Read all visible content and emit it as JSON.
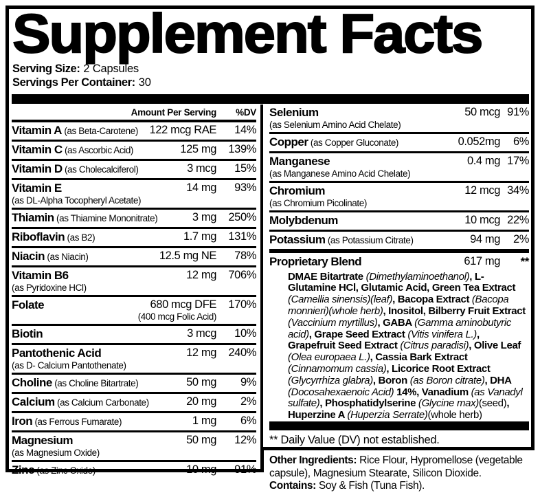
{
  "title": "Supplement Facts",
  "serving": {
    "size_label": "Serving Size:",
    "size_value": "2 Capsules",
    "container_label": "Servings Per Container:",
    "container_value": "30"
  },
  "table_header": {
    "amount": "Amount Per Serving",
    "dv": "%DV"
  },
  "left_rows": [
    {
      "name": "Vitamin A",
      "qualifier": "(as Beta-Carotene)",
      "qualifier_block": false,
      "amount": "122 mcg RAE",
      "amount_note": "",
      "dv": "14%"
    },
    {
      "name": "Vitamin C",
      "qualifier": "(as Ascorbic Acid)",
      "qualifier_block": false,
      "amount": "125 mg",
      "amount_note": "",
      "dv": "139%"
    },
    {
      "name": "Vitamin D",
      "qualifier": "(as Cholecalciferol)",
      "qualifier_block": false,
      "amount": "3 mcg",
      "amount_note": "",
      "dv": "15%"
    },
    {
      "name": "Vitamin E",
      "qualifier": "(as DL-Alpha Tocopheryl Acetate)",
      "qualifier_block": true,
      "amount": "14 mg",
      "amount_note": "",
      "dv": "93%"
    },
    {
      "name": "Thiamin",
      "qualifier": "(as Thiamine Mononitrate)",
      "qualifier_block": false,
      "amount": "3 mg",
      "amount_note": "",
      "dv": "250%"
    },
    {
      "name": "Riboflavin",
      "qualifier": "(as B2)",
      "qualifier_block": false,
      "amount": "1.7 mg",
      "amount_note": "",
      "dv": "131%"
    },
    {
      "name": "Niacin",
      "qualifier": "(as Niacin)",
      "qualifier_block": false,
      "amount": "12.5 mg NE",
      "amount_note": "",
      "dv": "78%"
    },
    {
      "name": "Vitamin B6",
      "qualifier": "(as Pyridoxine HCl)",
      "qualifier_block": true,
      "amount": "12 mg",
      "amount_note": "",
      "dv": "706%"
    },
    {
      "name": "Folate",
      "qualifier": "",
      "qualifier_block": false,
      "amount": "680 mcg DFE",
      "amount_note": "(400 mcg Folic Acid)",
      "dv": "170%"
    },
    {
      "name": "Biotin",
      "qualifier": "",
      "qualifier_block": false,
      "amount": "3 mcg",
      "amount_note": "",
      "dv": "10%"
    },
    {
      "name": "Pantothenic Acid",
      "qualifier": "(as D- Calcium Pantothenate)",
      "qualifier_block": true,
      "amount": "12 mg",
      "amount_note": "",
      "dv": "240%"
    },
    {
      "name": "Choline",
      "qualifier": "(as Choline Bitartrate)",
      "qualifier_block": false,
      "amount": "50 mg",
      "amount_note": "",
      "dv": "9%"
    },
    {
      "name": "Calcium",
      "qualifier": "(as Calcium Carbonate)",
      "qualifier_block": false,
      "amount": "20 mg",
      "amount_note": "",
      "dv": "2%"
    },
    {
      "name": "Iron",
      "qualifier": "(as Ferrous Fumarate)",
      "qualifier_block": false,
      "amount": "1 mg",
      "amount_note": "",
      "dv": "6%"
    },
    {
      "name": "Magnesium",
      "qualifier": "(as Magnesium Oxide)",
      "qualifier_block": true,
      "amount": "50 mg",
      "amount_note": "",
      "dv": "12%"
    },
    {
      "name": "Zinc",
      "qualifier": "(as Zinc Oxide)",
      "qualifier_block": false,
      "amount": "10 mg",
      "amount_note": "",
      "dv": "91%"
    }
  ],
  "right_rows": [
    {
      "name": "Selenium",
      "qualifier": "(as Selenium Amino Acid Chelate)",
      "qualifier_block": true,
      "amount": "50 mcg",
      "amount_note": "",
      "dv": "91%"
    },
    {
      "name": "Copper",
      "qualifier": "(as Copper Gluconate)",
      "qualifier_block": false,
      "amount": "0.052mg",
      "amount_note": "",
      "dv": "6%"
    },
    {
      "name": "Manganese",
      "qualifier": "(as Manganese Amino Acid Chelate)",
      "qualifier_block": true,
      "amount": "0.4 mg",
      "amount_note": "",
      "dv": "17%"
    },
    {
      "name": "Chromium",
      "qualifier": "(as Chromium Picolinate)",
      "qualifier_block": true,
      "amount": "12 mcg",
      "amount_note": "",
      "dv": "34%"
    },
    {
      "name": "Molybdenum",
      "qualifier": "",
      "qualifier_block": false,
      "amount": "10 mcg",
      "amount_note": "",
      "dv": "22%"
    },
    {
      "name": "Potassium",
      "qualifier": "(as Potassium Citrate)",
      "qualifier_block": false,
      "amount": "94 mg",
      "amount_note": "",
      "dv": "2%"
    }
  ],
  "proprietary": {
    "name": "Proprietary Blend",
    "amount": "617 mg",
    "dv": "**",
    "ingredients": [
      {
        "s": "b",
        "t": "DMAE Bitartrate "
      },
      {
        "s": "i",
        "t": "(Dimethylaminoethanol)"
      },
      {
        "s": "b",
        "t": ", L-Glutamine HCl, Glutamic Acid, Green Tea Extract "
      },
      {
        "s": "i",
        "t": "(Camellia sinensis)(leaf)"
      },
      {
        "s": "b",
        "t": ", Bacopa Extract "
      },
      {
        "s": "i",
        "t": "(Bacopa monnieri)(whole herb)"
      },
      {
        "s": "b",
        "t": ", Inositol, Bilberry Fruit Extract "
      },
      {
        "s": "i",
        "t": "(Vaccinium myrtillus)"
      },
      {
        "s": "b",
        "t": ", GABA "
      },
      {
        "s": "i",
        "t": "(Gamma aminobutyric acid)"
      },
      {
        "s": "b",
        "t": ", Grape Seed Extract "
      },
      {
        "s": "i",
        "t": "(Vitis vinifera L.)"
      },
      {
        "s": "b",
        "t": ", Grapefruit Seed Extract "
      },
      {
        "s": "i",
        "t": "(Citrus paradisi)"
      },
      {
        "s": "b",
        "t": ", Olive Leaf "
      },
      {
        "s": "i",
        "t": "(Olea europaea L.)"
      },
      {
        "s": "b",
        "t": ", Cassia Bark Extract "
      },
      {
        "s": "i",
        "t": "(Cinnamomum cassia)"
      },
      {
        "s": "b",
        "t": ", Licorice Root Extract "
      },
      {
        "s": "i",
        "t": "(Glycyrrhiza glabra)"
      },
      {
        "s": "b",
        "t": ", Boron "
      },
      {
        "s": "i",
        "t": "(as Boron citrate)"
      },
      {
        "s": "b",
        "t": ", DHA "
      },
      {
        "s": "i",
        "t": "(Docosahexaenoic Acid)"
      },
      {
        "s": "b",
        "t": " 14%, Vanadium "
      },
      {
        "s": "i",
        "t": "(as Vanadyl sulfate)"
      },
      {
        "s": "b",
        "t": ", Phosphatidylserine "
      },
      {
        "s": "i",
        "t": "(Glycine max)"
      },
      {
        "s": "n",
        "t": "(seed)"
      },
      {
        "s": "b",
        "t": ", Huperzine A "
      },
      {
        "s": "i",
        "t": "(Huperzia Serrate)"
      },
      {
        "s": "n",
        "t": "(whole herb)"
      }
    ]
  },
  "footnote": "** Daily Value (DV) not established.",
  "other_ingredients": {
    "label": "Other Ingredients:",
    "text": " Rice Flour, Hypromellose (vegetable capsule), Magnesium Stearate, Silicon Dioxide."
  },
  "contains": {
    "label": "Contains:",
    "text": " Soy & Fish (Tuna Fish)."
  },
  "colors": {
    "ink": "#000000",
    "paper": "#ffffff"
  }
}
